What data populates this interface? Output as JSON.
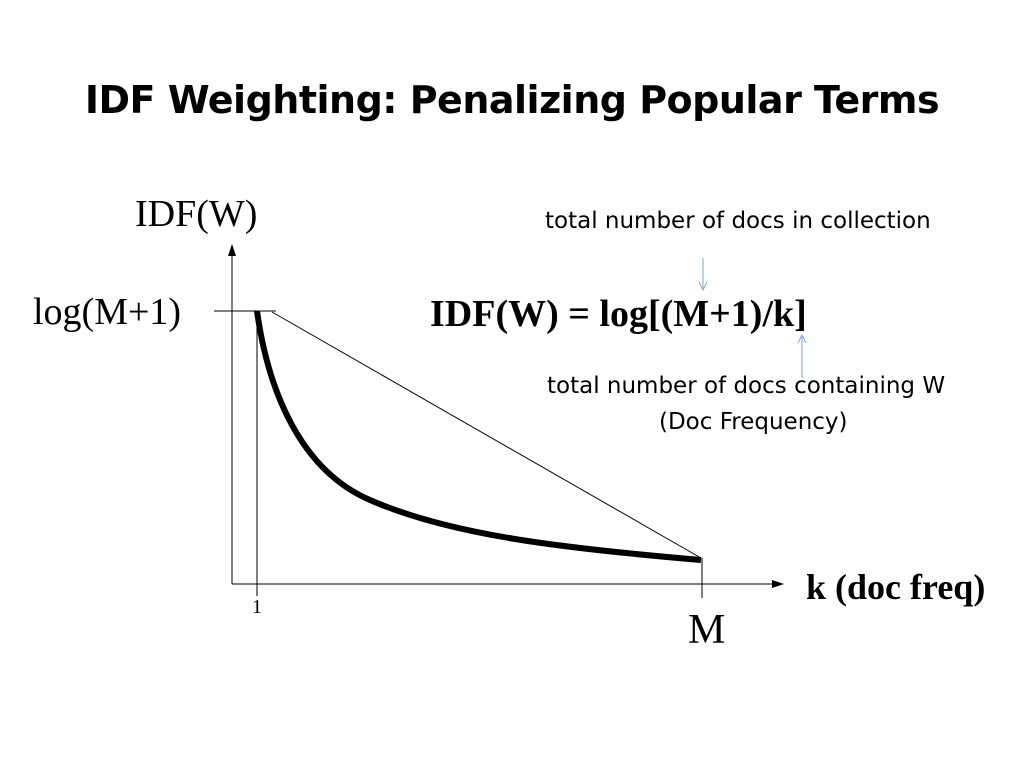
{
  "slide": {
    "title": "IDF Weighting: Penalizing Popular Terms"
  },
  "diagram": {
    "y_axis_label": "IDF(W)",
    "y_tick_label": "log(M+1)",
    "x_axis_label": "k (doc freq)",
    "x_tick_start": "1",
    "x_tick_end": "M",
    "formula": "IDF(W) = log[(M+1)/k]",
    "annotation_top": "total number of docs in collection",
    "annotation_bottom_line1": "total number of docs containing W",
    "annotation_bottom_line2": "(Doc Frequency)",
    "arrow_color": "#7ea6d8",
    "curve_color": "#000000"
  }
}
